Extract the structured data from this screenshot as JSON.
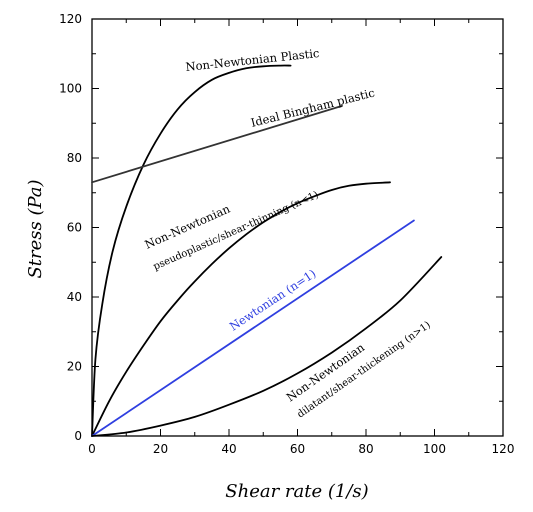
{
  "chart_data": {
    "type": "line",
    "xlabel": "Shear rate (1/s)",
    "ylabel": "Stress (Pa)",
    "xlim": [
      0,
      120
    ],
    "ylim": [
      0,
      120
    ],
    "xticks": [
      0,
      20,
      40,
      60,
      80,
      100,
      120
    ],
    "yticks": [
      0,
      20,
      40,
      60,
      80,
      100,
      120
    ],
    "grid": false,
    "series": [
      {
        "name": "Non-Newtonian Plastic",
        "color": "#000000",
        "x": [
          0,
          1,
          3,
          6,
          10,
          15,
          20,
          25,
          30,
          35,
          40,
          45,
          50,
          55,
          58
        ],
        "y": [
          0,
          22,
          38,
          53,
          66,
          78,
          87,
          94,
          99,
          102.5,
          104.5,
          105.8,
          106.4,
          106.6,
          106.6
        ]
      },
      {
        "name": "Ideal Bingham plastic",
        "color": "#333333",
        "x": [
          0,
          73
        ],
        "y": [
          73,
          95
        ]
      },
      {
        "name": "Non-Newtonian pseudoplastic/shear-thinning (n<1)",
        "color": "#000000",
        "x": [
          0,
          5,
          10,
          15,
          20,
          25,
          30,
          35,
          40,
          45,
          50,
          55,
          60,
          65,
          70,
          75,
          80,
          87
        ],
        "y": [
          0,
          10,
          18.5,
          26,
          33,
          39,
          44.5,
          49.5,
          54,
          58,
          61.5,
          64.5,
          67,
          69,
          70.8,
          72,
          72.6,
          73
        ]
      },
      {
        "name": "Newtonian (n=1)",
        "color": "#2f3fe0",
        "x": [
          0,
          94
        ],
        "y": [
          0,
          62
        ]
      },
      {
        "name": "Non-Newtonian dilatant/shear-thickening (n>1)",
        "color": "#000000",
        "x": [
          0,
          10,
          20,
          30,
          40,
          50,
          60,
          70,
          80,
          90,
          102
        ],
        "y": [
          0,
          1,
          3,
          5.5,
          9,
          13,
          18,
          24,
          31,
          39,
          51.5
        ]
      }
    ],
    "annotations": [
      {
        "name": "plastic",
        "lines": [
          "Non-Newtonian Plastic"
        ]
      },
      {
        "name": "bingham",
        "lines": [
          "Ideal Bingham plastic"
        ]
      },
      {
        "name": "pseudoplastic",
        "lines": [
          "Non-Newtonian",
          "pseudoplastic/shear-thinning (n<1)"
        ]
      },
      {
        "name": "newtonian",
        "lines": [
          "Newtonian (n=1)"
        ]
      },
      {
        "name": "dilatant",
        "lines": [
          "Non-Newtonian",
          "dilatant/shear-thickening (n>1)"
        ]
      }
    ]
  }
}
